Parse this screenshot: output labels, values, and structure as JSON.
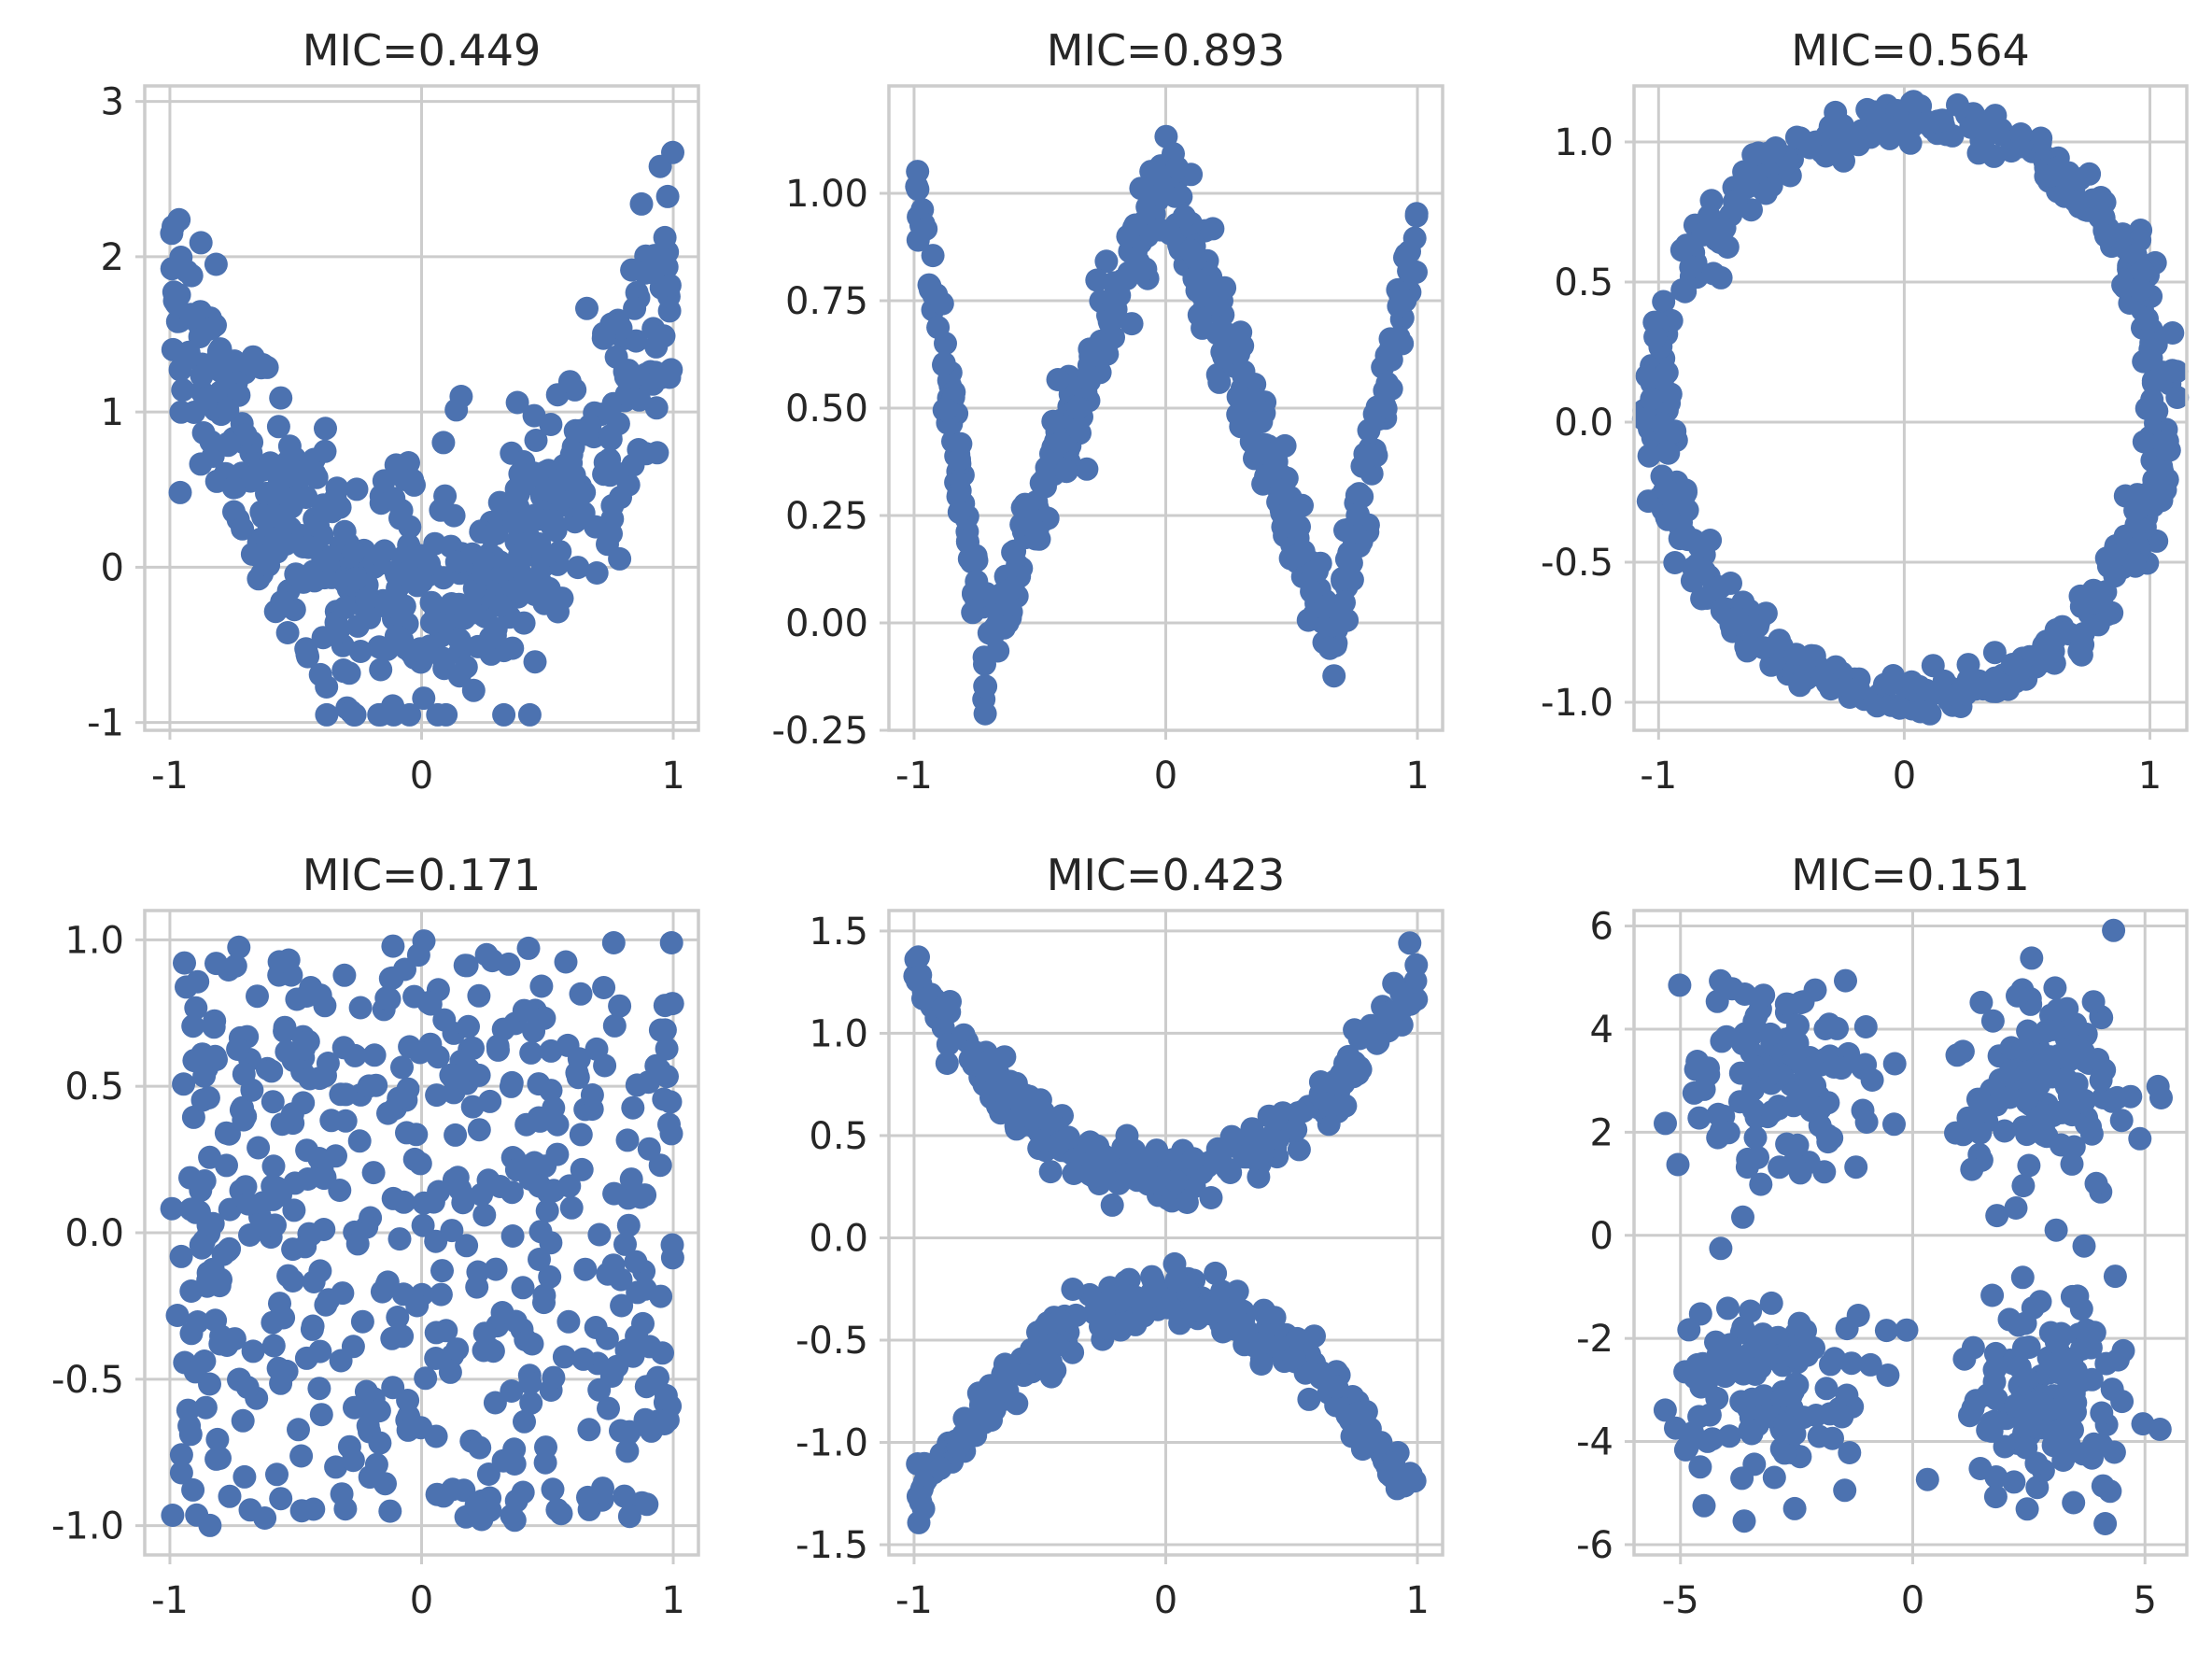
{
  "chart_data": [
    {
      "type": "scatter",
      "title": "MIC=0.449",
      "xlim": [
        -1.1,
        1.1
      ],
      "ylim": [
        -1.05,
        3.1
      ],
      "xticks": [
        -1,
        0,
        1
      ],
      "xticklabels": [
        "-1",
        "0",
        "1"
      ],
      "yticks": [
        -1,
        0,
        1,
        2,
        3
      ],
      "yticklabels": [
        "-1",
        "0",
        "1",
        "2",
        "3"
      ],
      "grid": true,
      "color": "#4c72b0",
      "shape": "parabola with noise: y = 2x^2 - 0.2 + noise(0.4)",
      "sample_points": [
        [
          -0.95,
          1.6
        ],
        [
          -0.8,
          1.9
        ],
        [
          -0.6,
          0.9
        ],
        [
          -0.4,
          0.2
        ],
        [
          -0.2,
          -0.1
        ],
        [
          0.0,
          -0.3
        ],
        [
          0.2,
          0.0
        ],
        [
          0.4,
          0.6
        ],
        [
          0.6,
          1.2
        ],
        [
          0.8,
          1.7
        ],
        [
          0.97,
          2.8
        ]
      ]
    },
    {
      "type": "scatter",
      "title": "MIC=0.893",
      "xlim": [
        -1.1,
        1.1
      ],
      "ylim": [
        -0.25,
        1.25
      ],
      "xticks": [
        -1,
        0,
        1
      ],
      "xticklabels": [
        "-1",
        "0",
        "1"
      ],
      "yticks": [
        -0.25,
        0,
        0.25,
        0.5,
        0.75,
        1.0
      ],
      "yticklabels": [
        "-0.25",
        "0.00",
        "0.25",
        "0.50",
        "0.75",
        "1.00"
      ],
      "grid": true,
      "color": "#4c72b0",
      "shape": "W-shaped curve with noise",
      "sample_points": [
        [
          -1.0,
          1.05
        ],
        [
          -0.9,
          0.5
        ],
        [
          -0.75,
          0.05
        ],
        [
          -0.5,
          0.4
        ],
        [
          -0.25,
          0.8
        ],
        [
          0.0,
          1.05
        ],
        [
          0.25,
          0.75
        ],
        [
          0.5,
          0.3
        ],
        [
          0.65,
          0.0
        ],
        [
          0.85,
          0.3
        ],
        [
          0.98,
          0.8
        ]
      ]
    },
    {
      "type": "scatter",
      "title": "MIC=0.564",
      "xlim": [
        -1.1,
        1.15
      ],
      "ylim": [
        -1.1,
        1.2
      ],
      "xticks": [
        -1,
        0,
        1
      ],
      "xticklabels": [
        "-1",
        "0",
        "1"
      ],
      "yticks": [
        -1.0,
        -0.5,
        0.0,
        0.5,
        1.0
      ],
      "yticklabels": [
        "-1.0",
        "-0.5",
        "0.0",
        "0.5",
        "1.0"
      ],
      "grid": true,
      "color": "#4c72b0",
      "shape": "unit circle with noise, centered near (0.05, 0.05)",
      "sample_points": [
        [
          1.05,
          0.0
        ],
        [
          0.75,
          0.75
        ],
        [
          0.0,
          1.05
        ],
        [
          -0.7,
          0.7
        ],
        [
          -1.0,
          0.0
        ],
        [
          -0.7,
          -0.7
        ],
        [
          0.0,
          -0.95
        ],
        [
          0.75,
          -0.7
        ]
      ]
    },
    {
      "type": "scatter",
      "title": "MIC=0.171",
      "xlim": [
        -1.1,
        1.1
      ],
      "ylim": [
        -1.1,
        1.1
      ],
      "xticks": [
        -1,
        0,
        1
      ],
      "xticklabels": [
        "-1",
        "0",
        "1"
      ],
      "yticks": [
        -1.0,
        -0.5,
        0.0,
        0.5,
        1.0
      ],
      "yticklabels": [
        "-1.0",
        "-0.5",
        "0.0",
        "0.5",
        "1.0"
      ],
      "grid": true,
      "color": "#4c72b0",
      "shape": "uniform random in [-1,1] x [-1,1]",
      "sample_points": [
        [
          -0.9,
          0.75
        ],
        [
          -0.5,
          -0.6
        ],
        [
          0.0,
          0.1
        ],
        [
          0.4,
          0.95
        ],
        [
          0.9,
          -0.9
        ],
        [
          0.6,
          0.3
        ],
        [
          -0.2,
          -0.85
        ]
      ]
    },
    {
      "type": "scatter",
      "title": "MIC=0.423",
      "xlim": [
        -1.1,
        1.1
      ],
      "ylim": [
        -1.55,
        1.6
      ],
      "xticks": [
        -1,
        0,
        1
      ],
      "xticklabels": [
        "-1",
        "0",
        "1"
      ],
      "yticks": [
        -1.5,
        -1.0,
        -0.5,
        0.0,
        0.5,
        1.0,
        1.5
      ],
      "yticklabels": [
        "-1.5",
        "-1.0",
        "-0.5",
        "0.0",
        "0.5",
        "1.0",
        "1.5"
      ],
      "grid": true,
      "color": "#4c72b0",
      "shape": "X shape: y = +/-(x^2 + 0.3) with noise",
      "sample_points": [
        [
          -1.0,
          1.35
        ],
        [
          -0.5,
          0.6
        ],
        [
          0.0,
          0.3
        ],
        [
          0.5,
          0.55
        ],
        [
          1.0,
          1.3
        ],
        [
          -1.0,
          -1.35
        ],
        [
          -0.5,
          -0.6
        ],
        [
          0.0,
          -0.3
        ],
        [
          0.5,
          -0.55
        ],
        [
          1.0,
          -1.3
        ]
      ]
    },
    {
      "type": "scatter",
      "title": "MIC=0.151",
      "xlim": [
        -6.0,
        5.9
      ],
      "ylim": [
        -6.2,
        6.3
      ],
      "xticks": [
        -5,
        0,
        5
      ],
      "xticklabels": [
        "-5",
        "0",
        "5"
      ],
      "yticks": [
        -6,
        -4,
        -2,
        0,
        2,
        4,
        6
      ],
      "yticklabels": [
        "-6",
        "-4",
        "-2",
        "0",
        "2",
        "4",
        "6"
      ],
      "grid": true,
      "color": "#4c72b0",
      "shape": "four gaussian clusters",
      "clusters": [
        {
          "center": [
            -3,
            3
          ],
          "spread": 1.0
        },
        {
          "center": [
            3,
            3
          ],
          "spread": 1.0
        },
        {
          "center": [
            -3,
            -3
          ],
          "spread": 1.0
        },
        {
          "center": [
            3,
            -3
          ],
          "spread": 1.0
        }
      ]
    }
  ]
}
